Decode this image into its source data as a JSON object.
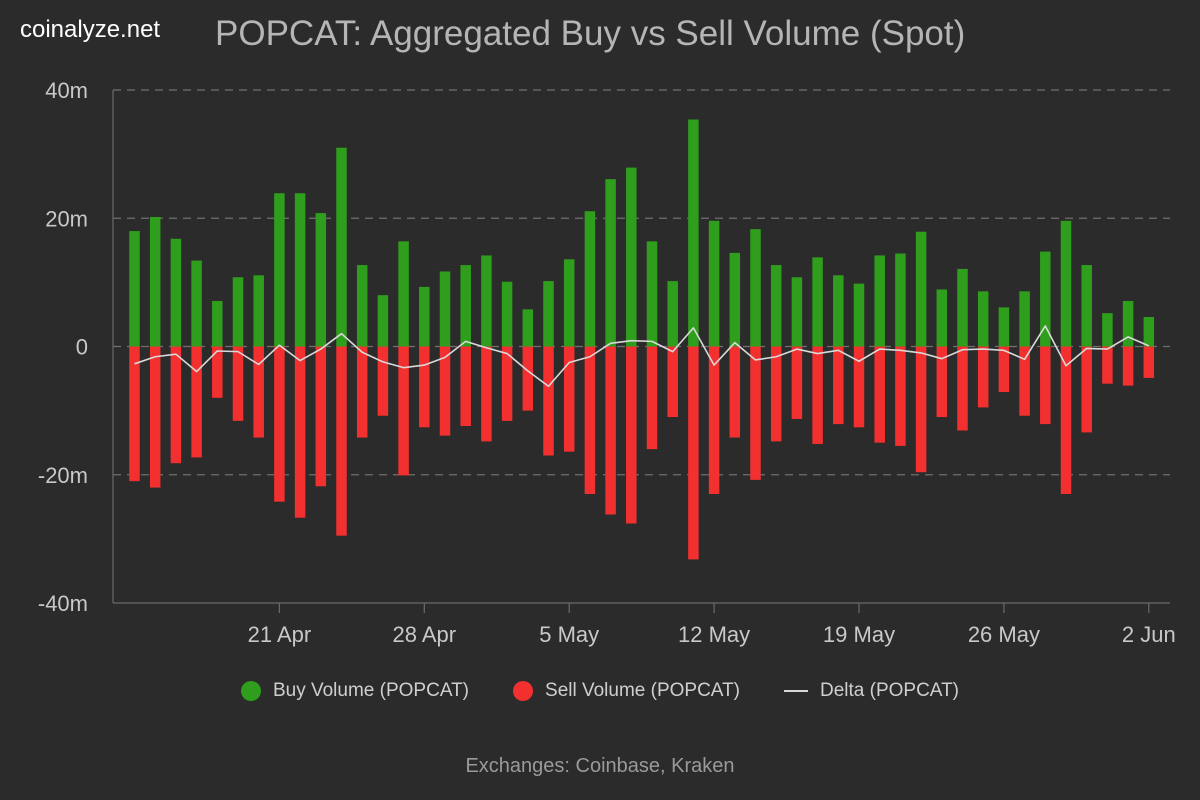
{
  "brand": "coinalyze.net",
  "title": "POPCAT: Aggregated Buy vs Sell Volume (Spot)",
  "footer": "Exchanges: Coinbase, Kraken",
  "legend": [
    {
      "label": "Buy Volume (POPCAT)",
      "color": "#2f9e1d"
    },
    {
      "label": "Sell Volume (POPCAT)",
      "color": "#f23030"
    },
    {
      "label": "Delta (POPCAT)",
      "color": "#d9d9d9"
    }
  ],
  "chart_data": {
    "type": "bar",
    "x_start_date": "2024-04-14",
    "x_tick_labels": [
      "21 Apr",
      "28 Apr",
      "5 May",
      "12 May",
      "19 May",
      "26 May",
      "2 Jun"
    ],
    "x_tick_day_index": [
      7,
      14,
      21,
      28,
      35,
      42,
      49
    ],
    "ylim": [
      -40,
      40
    ],
    "y_ticks": [
      40,
      20,
      0,
      -20,
      -40
    ],
    "y_tick_labels": [
      "40m",
      "20m",
      "0",
      "-20m",
      "-40m"
    ],
    "y_unit": "m",
    "grid": true,
    "legend_position": "bottom",
    "series": [
      {
        "name": "Buy Volume (POPCAT)",
        "color": "#2f9e1d",
        "values": [
          18.0,
          20.2,
          16.8,
          13.4,
          7.1,
          10.8,
          11.1,
          23.9,
          23.9,
          20.8,
          31.0,
          12.7,
          8.0,
          16.4,
          9.3,
          11.7,
          12.7,
          14.2,
          10.1,
          5.8,
          10.2,
          13.6,
          21.1,
          26.1,
          27.9,
          16.4,
          10.2,
          35.4,
          19.6,
          14.6,
          18.3,
          12.7,
          10.8,
          13.9,
          11.1,
          9.8,
          14.2,
          14.5,
          17.9,
          8.9,
          12.1,
          8.6,
          6.1,
          8.6,
          14.8,
          19.6,
          12.7,
          5.2,
          7.1,
          4.6
        ]
      },
      {
        "name": "Sell Volume (POPCAT)",
        "color": "#f23030",
        "values": [
          -21.0,
          -22.0,
          -18.2,
          -17.3,
          -8.0,
          -11.6,
          -14.2,
          -24.2,
          -26.7,
          -21.8,
          -29.5,
          -14.2,
          -10.8,
          -20.1,
          -12.6,
          -13.9,
          -12.4,
          -14.8,
          -11.6,
          -10.0,
          -17.0,
          -16.4,
          -23.0,
          -26.2,
          -27.6,
          -16.0,
          -11.0,
          -33.2,
          -23.0,
          -14.2,
          -20.8,
          -14.8,
          -11.3,
          -15.2,
          -12.1,
          -12.6,
          -15.0,
          -15.5,
          -19.6,
          -11.0,
          -13.1,
          -9.5,
          -7.1,
          -10.8,
          -12.1,
          -23.0,
          -13.4,
          -5.8,
          -6.1,
          -4.9
        ]
      },
      {
        "name": "Delta (POPCAT)",
        "color": "#d9d9d9",
        "values": [
          -2.7,
          -1.6,
          -1.2,
          -3.9,
          -0.7,
          -0.8,
          -2.8,
          0.2,
          -2.2,
          -0.4,
          2.0,
          -0.9,
          -2.4,
          -3.3,
          -2.9,
          -1.7,
          0.8,
          -0.2,
          -1.1,
          -3.8,
          -6.2,
          -2.5,
          -1.6,
          0.5,
          0.9,
          0.8,
          -0.8,
          2.9,
          -2.9,
          0.6,
          -2.1,
          -1.6,
          -0.4,
          -1.1,
          -0.6,
          -2.3,
          -0.4,
          -0.6,
          -1.0,
          -1.9,
          -0.5,
          -0.4,
          -0.6,
          -2.0,
          3.2,
          -3.0,
          -0.3,
          -0.4,
          1.5,
          0.1
        ]
      }
    ]
  }
}
